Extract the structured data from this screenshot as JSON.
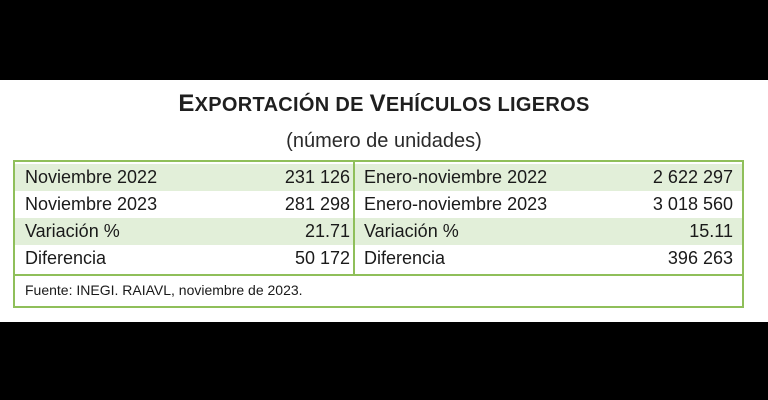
{
  "title": {
    "part1_big": "E",
    "part1_small": "XPORTACIÓN DE ",
    "part2_big": "V",
    "part2_small": "EHÍCULOS LIGEROS"
  },
  "subtitle": "(número de unidades)",
  "colors": {
    "border": "#8fbf5a",
    "shade": "#e2efd9"
  },
  "rows": [
    {
      "left_label": "Noviembre 2022",
      "left_value": "231 126",
      "right_label": "Enero-noviembre 2022",
      "right_value": "2 622 297"
    },
    {
      "left_label": "Noviembre 2023",
      "left_value": "281 298",
      "right_label": "Enero-noviembre 2023",
      "right_value": "3 018 560"
    },
    {
      "left_label": "Variación %",
      "left_value": "21.71",
      "right_label": "Variación %",
      "right_value": "15.11"
    },
    {
      "left_label": "Diferencia",
      "left_value": "50 172",
      "right_label": "Diferencia",
      "right_value": "396 263"
    }
  ],
  "source": "Fuente: INEGI. RAIAVL, noviembre de 2023."
}
